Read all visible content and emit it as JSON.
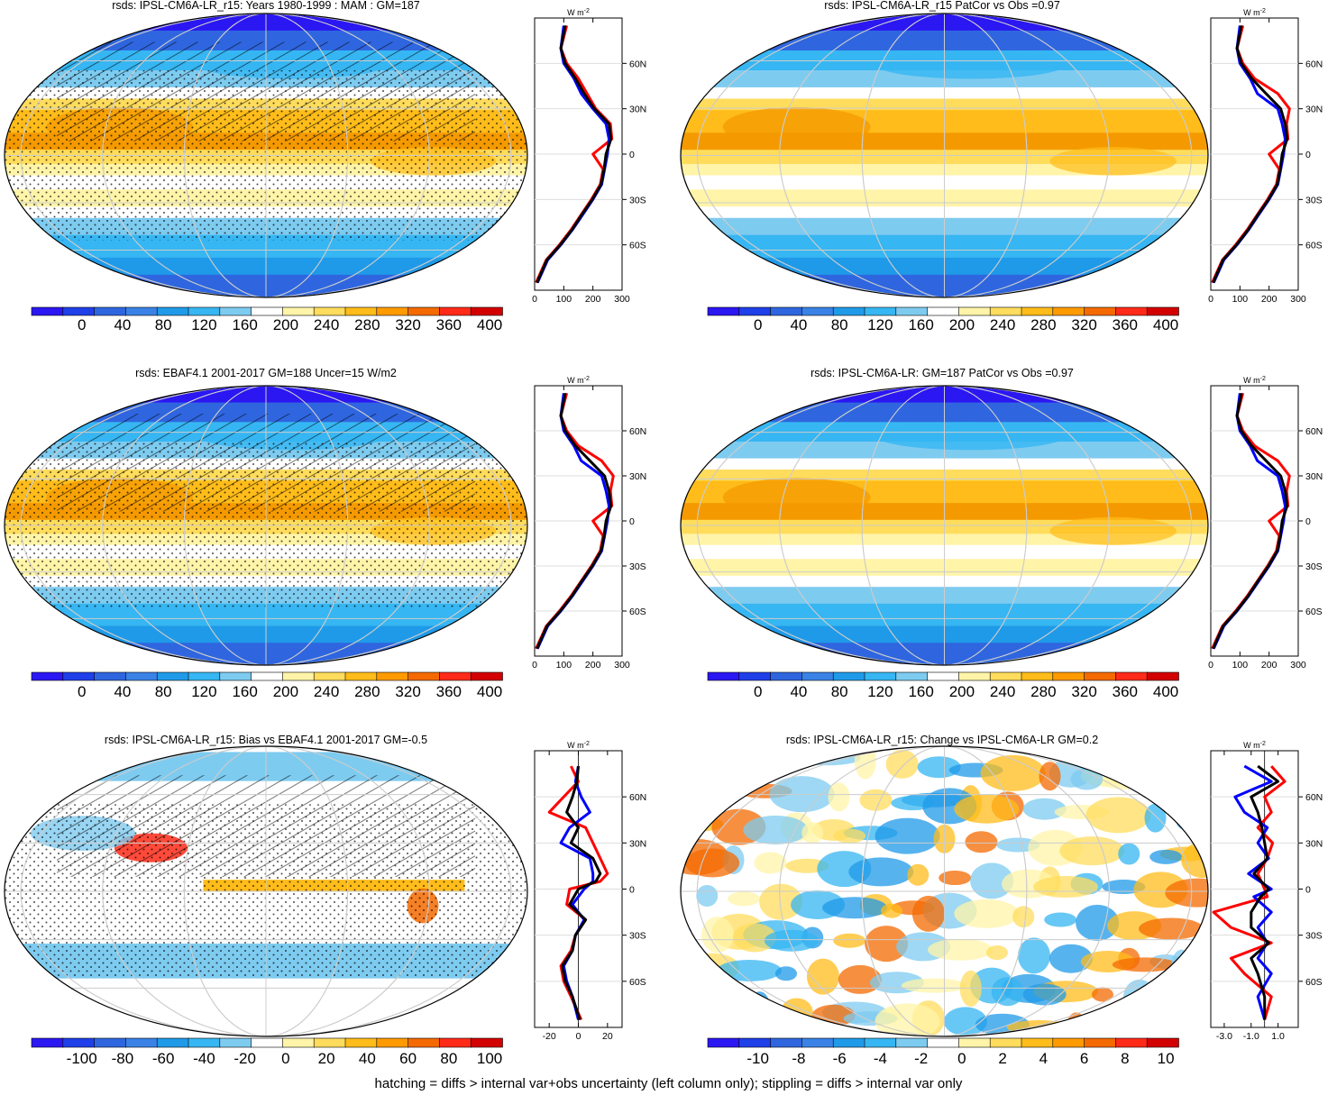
{
  "footnote": "hatching = diffs > internal var+obs uncertainty (left column only); stippling = diffs > internal var only",
  "colors": {
    "obs_line": "#ff0000",
    "model_line": "#0000ff",
    "target_line": "#000000",
    "colorbar_13": [
      "#2b17f2",
      "#1f3fe8",
      "#2f66df",
      "#3a82e6",
      "#1f9ae8",
      "#36b6f2",
      "#7ecbf0",
      "#ffffff",
      "#fff4a8",
      "#ffdc5c",
      "#ffbc1a",
      "#ff9a00",
      "#f46a00",
      "#ff2a18",
      "#d20000"
    ]
  },
  "chart_data": [
    {
      "type": "map_with_zonal_profile",
      "id": "p1",
      "title": "rsds: IPSL-CM6A-LR_r15: Years 1980-1999 : MAM : GM=187",
      "colorbar_ticks": [
        "0",
        "40",
        "80",
        "120",
        "160",
        "200",
        "240",
        "280",
        "320",
        "360",
        "400"
      ],
      "profile": {
        "unit": "W m",
        "unit_exp": "-2",
        "xticks": [
          "0",
          "100",
          "200",
          "300"
        ],
        "xlim": [
          0,
          300
        ],
        "yticks": [
          "60N",
          "30N",
          "0",
          "30S",
          "60S"
        ],
        "ylim": [
          -90,
          90
        ],
        "series": [
          {
            "color": "red",
            "lat": [
              -85,
              -70,
              -60,
              -50,
              -40,
              -30,
              -20,
              -10,
              0,
              10,
              20,
              30,
              40,
              50,
              60,
              70,
              85
            ],
            "values": [
              5,
              40,
              85,
              125,
              160,
              195,
              225,
              235,
              200,
              265,
              260,
              210,
              180,
              150,
              110,
              90,
              110
            ]
          },
          {
            "color": "blue",
            "lat": [
              -85,
              -70,
              -60,
              -50,
              -40,
              -30,
              -20,
              -10,
              0,
              10,
              20,
              30,
              40,
              50,
              60,
              70,
              85
            ],
            "values": [
              10,
              45,
              90,
              130,
              165,
              200,
              230,
              240,
              250,
              255,
              245,
              200,
              160,
              135,
              100,
              90,
              100
            ]
          },
          {
            "color": "black",
            "lat": [
              -85,
              -70,
              -60,
              -50,
              -40,
              -30,
              -20,
              -10,
              0,
              10,
              20,
              30,
              40,
              50,
              60,
              70,
              85
            ],
            "values": [
              8,
              42,
              88,
              128,
              162,
              198,
              228,
              238,
              245,
              262,
              255,
              205,
              170,
              140,
              105,
              90,
              105
            ]
          }
        ]
      }
    },
    {
      "type": "map_with_zonal_profile",
      "id": "p2",
      "title": "rsds: IPSL-CM6A-LR_r15 PatCor vs Obs =0.97",
      "colorbar_ticks": [
        "0",
        "40",
        "80",
        "120",
        "160",
        "200",
        "240",
        "280",
        "320",
        "360",
        "400"
      ],
      "profile": {
        "unit": "W m",
        "unit_exp": "-2",
        "xticks": [
          "0",
          "100",
          "200",
          "300"
        ],
        "xlim": [
          0,
          300
        ],
        "yticks": [
          "60N",
          "30N",
          "0",
          "30S",
          "60S"
        ],
        "ylim": [
          -90,
          90
        ],
        "series": [
          {
            "color": "red",
            "lat": [
              -85,
              -70,
              -60,
              -50,
              -40,
              -30,
              -20,
              -10,
              0,
              10,
              20,
              30,
              40,
              50,
              60,
              70,
              85
            ],
            "values": [
              5,
              40,
              85,
              125,
              160,
              195,
              225,
              235,
              200,
              265,
              260,
              270,
              230,
              150,
              110,
              90,
              110
            ]
          },
          {
            "color": "blue",
            "lat": [
              -85,
              -70,
              -60,
              -50,
              -40,
              -30,
              -20,
              -10,
              0,
              10,
              20,
              30,
              40,
              50,
              60,
              70,
              85
            ],
            "values": [
              10,
              45,
              90,
              130,
              165,
              200,
              230,
              240,
              250,
              255,
              245,
              230,
              160,
              135,
              100,
              90,
              100
            ]
          },
          {
            "color": "black",
            "lat": [
              -85,
              -70,
              -60,
              -50,
              -40,
              -30,
              -20,
              -10,
              0,
              10,
              20,
              30,
              40,
              50,
              60,
              70,
              85
            ],
            "values": [
              8,
              42,
              88,
              128,
              162,
              198,
              228,
              238,
              245,
              262,
              255,
              240,
              190,
              140,
              105,
              90,
              105
            ]
          }
        ]
      }
    },
    {
      "type": "map_with_zonal_profile",
      "id": "p3",
      "title": "rsds: EBAF4.1 2001-2017 GM=188 Uncer=15 W/m2",
      "colorbar_ticks": [
        "0",
        "40",
        "80",
        "120",
        "160",
        "200",
        "240",
        "280",
        "320",
        "360",
        "400"
      ],
      "profile": {
        "unit": "W m",
        "unit_exp": "-2",
        "xticks": [
          "0",
          "100",
          "200",
          "300"
        ],
        "xlim": [
          0,
          300
        ],
        "yticks": [
          "60N",
          "30N",
          "0",
          "30S",
          "60S"
        ],
        "ylim": [
          -90,
          90
        ],
        "series": [
          {
            "color": "red",
            "lat": [
              -85,
              -70,
              -60,
              -50,
              -40,
              -30,
              -20,
              -10,
              0,
              10,
              20,
              30,
              40,
              50,
              60,
              70,
              85
            ],
            "values": [
              5,
              40,
              85,
              125,
              160,
              195,
              225,
              235,
              200,
              265,
              260,
              270,
              230,
              150,
              110,
              90,
              110
            ]
          },
          {
            "color": "blue",
            "lat": [
              -85,
              -70,
              -60,
              -50,
              -40,
              -30,
              -20,
              -10,
              0,
              10,
              20,
              30,
              40,
              50,
              60,
              70,
              85
            ],
            "values": [
              10,
              45,
              90,
              130,
              165,
              200,
              230,
              240,
              250,
              255,
              245,
              230,
              160,
              135,
              100,
              90,
              100
            ]
          },
          {
            "color": "black",
            "lat": [
              -85,
              -70,
              -60,
              -50,
              -40,
              -30,
              -20,
              -10,
              0,
              10,
              20,
              30,
              40,
              50,
              60,
              70,
              85
            ],
            "values": [
              8,
              42,
              88,
              128,
              162,
              198,
              228,
              238,
              245,
              262,
              255,
              240,
              190,
              140,
              105,
              90,
              105
            ]
          }
        ]
      }
    },
    {
      "type": "map_with_zonal_profile",
      "id": "p4",
      "title": "rsds: IPSL-CM6A-LR: GM=187 PatCor vs Obs =0.97",
      "colorbar_ticks": [
        "0",
        "40",
        "80",
        "120",
        "160",
        "200",
        "240",
        "280",
        "320",
        "360",
        "400"
      ],
      "profile": {
        "unit": "W m",
        "unit_exp": "-2",
        "xticks": [
          "0",
          "100",
          "200",
          "300"
        ],
        "xlim": [
          0,
          300
        ],
        "yticks": [
          "60N",
          "30N",
          "0",
          "30S",
          "60S"
        ],
        "ylim": [
          -90,
          90
        ],
        "series": [
          {
            "color": "red",
            "lat": [
              -85,
              -70,
              -60,
              -50,
              -40,
              -30,
              -20,
              -10,
              0,
              10,
              20,
              30,
              40,
              50,
              60,
              70,
              85
            ],
            "values": [
              5,
              40,
              85,
              125,
              160,
              195,
              225,
              235,
              200,
              265,
              260,
              270,
              230,
              150,
              110,
              90,
              110
            ]
          },
          {
            "color": "blue",
            "lat": [
              -85,
              -70,
              -60,
              -50,
              -40,
              -30,
              -20,
              -10,
              0,
              10,
              20,
              30,
              40,
              50,
              60,
              70,
              85
            ],
            "values": [
              10,
              45,
              90,
              130,
              165,
              200,
              230,
              240,
              250,
              255,
              245,
              230,
              160,
              135,
              100,
              90,
              100
            ]
          },
          {
            "color": "black",
            "lat": [
              -85,
              -70,
              -60,
              -50,
              -40,
              -30,
              -20,
              -10,
              0,
              10,
              20,
              30,
              40,
              50,
              60,
              70,
              85
            ],
            "values": [
              8,
              42,
              88,
              128,
              162,
              198,
              228,
              238,
              245,
              262,
              255,
              240,
              190,
              140,
              105,
              90,
              105
            ]
          }
        ]
      }
    },
    {
      "type": "map_with_zonal_profile",
      "id": "p5",
      "title": "rsds: IPSL-CM6A-LR_r15: Bias vs EBAF4.1 2001-2017 GM=-0.5",
      "colorbar_ticks": [
        "-100",
        "-80",
        "-60",
        "-40",
        "-20",
        "0",
        "20",
        "40",
        "60",
        "80",
        "100"
      ],
      "profile": {
        "unit": "W m",
        "unit_exp": "-2",
        "xticks": [
          "-20",
          "0",
          "20"
        ],
        "xlim": [
          -30,
          30
        ],
        "yticks": [
          "60N",
          "30N",
          "0",
          "30S",
          "60S"
        ],
        "ylim": [
          -90,
          90
        ],
        "series": [
          {
            "color": "red",
            "lat": [
              -85,
              -70,
              -60,
              -50,
              -40,
              -30,
              -20,
              -10,
              0,
              5,
              10,
              20,
              30,
              40,
              50,
              60,
              70,
              80
            ],
            "values": [
              2,
              -5,
              -10,
              -12,
              -5,
              -2,
              5,
              -8,
              -6,
              15,
              20,
              15,
              10,
              5,
              -20,
              -10,
              0,
              -5
            ]
          },
          {
            "color": "blue",
            "lat": [
              -85,
              -70,
              -60,
              -50,
              -40,
              -30,
              -20,
              -10,
              0,
              5,
              10,
              20,
              30,
              40,
              50,
              60,
              70,
              80
            ],
            "values": [
              0,
              -4,
              -8,
              -10,
              -4,
              -2,
              4,
              -4,
              4,
              10,
              10,
              8,
              -12,
              -6,
              8,
              2,
              -2,
              0
            ]
          },
          {
            "color": "black",
            "lat": [
              -85,
              -70,
              -60,
              -50,
              -40,
              -30,
              -20,
              -10,
              0,
              5,
              10,
              20,
              30,
              40,
              50,
              60,
              70,
              80
            ],
            "values": [
              1,
              -4,
              -9,
              -11,
              -4,
              -2,
              5,
              -6,
              0,
              12,
              15,
              10,
              -5,
              0,
              -8,
              -4,
              -1,
              0
            ]
          }
        ]
      }
    },
    {
      "type": "map_with_zonal_profile",
      "id": "p6",
      "title": "rsds: IPSL-CM6A-LR_r15: Change vs IPSL-CM6A-LR GM=0.2",
      "colorbar_ticks": [
        "-10",
        "-8",
        "-6",
        "-4",
        "-2",
        "0",
        "2",
        "4",
        "6",
        "8",
        "10"
      ],
      "profile": {
        "unit": "W m",
        "unit_exp": "-2",
        "xticks": [
          "-3.0",
          "-1.0",
          "1.0"
        ],
        "xlim": [
          -4,
          2.5
        ],
        "yticks": [
          "60N",
          "30N",
          "0",
          "30S",
          "60S"
        ],
        "ylim": [
          -90,
          90
        ],
        "series": [
          {
            "color": "red",
            "lat": [
              -85,
              -70,
              -55,
              -45,
              -35,
              -25,
              -15,
              -5,
              0,
              10,
              20,
              30,
              40,
              50,
              60,
              70,
              80
            ],
            "values": [
              0,
              0.5,
              -1.5,
              -2.5,
              0.5,
              -2.5,
              -3.8,
              0.2,
              0,
              -0.5,
              0.2,
              0.6,
              -0.5,
              0.5,
              0,
              1.5,
              0.5
            ]
          },
          {
            "color": "blue",
            "lat": [
              -85,
              -70,
              -55,
              -45,
              -35,
              -25,
              -15,
              -5,
              0,
              10,
              20,
              30,
              40,
              50,
              60,
              70,
              80
            ],
            "values": [
              0,
              -0.5,
              0.5,
              -0.5,
              0.2,
              -0.5,
              0.5,
              -0.8,
              0.5,
              -1.2,
              0.3,
              -0.5,
              0.2,
              -1.5,
              -2.2,
              0.5,
              -1.5
            ]
          },
          {
            "color": "black",
            "lat": [
              -85,
              -70,
              -55,
              -45,
              -35,
              -25,
              -15,
              -5,
              0,
              10,
              20,
              30,
              40,
              50,
              60,
              70,
              80
            ],
            "values": [
              0,
              0,
              -0.5,
              -1,
              0.3,
              -1,
              -1,
              -0.3,
              0.3,
              -0.8,
              0.2,
              0,
              -0.2,
              -0.5,
              -1,
              1,
              -0.5
            ]
          }
        ]
      }
    }
  ]
}
